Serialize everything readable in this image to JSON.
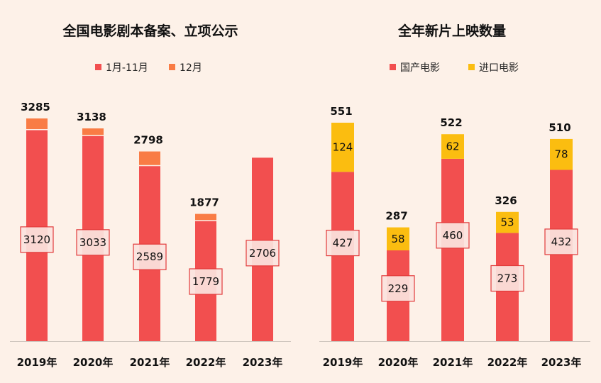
{
  "chart_data": [
    {
      "type": "bar",
      "stacked": true,
      "title": "全国电影剧本备案、立项公示",
      "categories": [
        "2019年",
        "2020年",
        "2021年",
        "2022年",
        "2023年"
      ],
      "series": [
        {
          "name": "1月-11月",
          "color": "#f24f4f",
          "values": [
            3120,
            3033,
            2589,
            1779,
            2706
          ]
        },
        {
          "name": "12月",
          "color": "#f97c45",
          "values": [
            165,
            105,
            209,
            98,
            null
          ]
        }
      ],
      "totals": [
        3285,
        3138,
        2798,
        1877,
        null
      ],
      "legend": "top",
      "ylim": [
        0,
        3500
      ],
      "grid": false
    },
    {
      "type": "bar",
      "stacked": true,
      "title": "全年新片上映数量",
      "categories": [
        "2019年",
        "2020年",
        "2021年",
        "2022年",
        "2023年"
      ],
      "series": [
        {
          "name": "国产电影",
          "color": "#f24f4f",
          "values": [
            427,
            229,
            460,
            273,
            432
          ]
        },
        {
          "name": "进口电影",
          "color": "#fbbd10",
          "values": [
            124,
            58,
            62,
            53,
            78
          ]
        }
      ],
      "totals": [
        551,
        287,
        522,
        326,
        510
      ],
      "legend": "top",
      "ylim": [
        0,
        580
      ],
      "grid": false
    }
  ]
}
